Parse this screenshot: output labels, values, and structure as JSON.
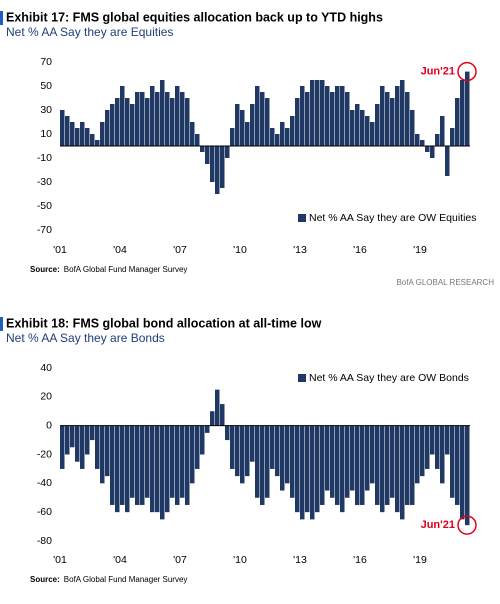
{
  "chart_data": [
    {
      "type": "bar",
      "title": "Exhibit 17: FMS global equities  allocation back up to YTD highs",
      "subtitle": "Net % AA Say they are Equities",
      "source_label": "Source:",
      "source": "BofA Global Fund Manager Survey",
      "brand": "BofA GLOBAL RESEARCH",
      "annotation": "Jun'21",
      "legend": "lower right",
      "categories": [
        "'01",
        null,
        null,
        null,
        null,
        null,
        null,
        null,
        null,
        null,
        null,
        null,
        "'04",
        null,
        null,
        null,
        null,
        null,
        null,
        null,
        null,
        null,
        null,
        null,
        "'07",
        null,
        null,
        null,
        null,
        null,
        null,
        null,
        null,
        null,
        null,
        null,
        "'10",
        null,
        null,
        null,
        null,
        null,
        null,
        null,
        null,
        null,
        null,
        null,
        "'13",
        null,
        null,
        null,
        null,
        null,
        null,
        null,
        null,
        null,
        null,
        null,
        "'16",
        null,
        null,
        null,
        null,
        null,
        null,
        null,
        null,
        null,
        null,
        null,
        "'19",
        null,
        null,
        null,
        null,
        null,
        null,
        null,
        null,
        null
      ],
      "series": [
        {
          "name": "Net % AA Say they are OW Equities",
          "color": "#1f3864",
          "values": [
            30,
            25,
            20,
            15,
            20,
            15,
            10,
            5,
            20,
            30,
            35,
            40,
            50,
            40,
            35,
            45,
            45,
            40,
            50,
            45,
            55,
            45,
            40,
            50,
            45,
            40,
            20,
            10,
            -5,
            -15,
            -30,
            -40,
            -35,
            -10,
            15,
            35,
            30,
            20,
            35,
            50,
            45,
            40,
            15,
            10,
            20,
            15,
            25,
            40,
            50,
            45,
            55,
            55,
            55,
            50,
            45,
            50,
            50,
            45,
            30,
            35,
            30,
            25,
            20,
            35,
            50,
            45,
            40,
            50,
            55,
            45,
            30,
            10,
            5,
            -5,
            -10,
            10,
            25,
            -25,
            15,
            40,
            55,
            62
          ]
        }
      ],
      "ylim": [
        -70,
        70
      ],
      "yticks": [
        -70,
        -50,
        -30,
        -10,
        10,
        30,
        50,
        70
      ]
    },
    {
      "type": "bar",
      "title": "Exhibit 18: FMS global bond allocation at all-time low",
      "subtitle": "Net % AA Say they are Bonds",
      "source_label": "Source:",
      "source": "BofA Global Fund Manager Survey",
      "annotation": "Jun'21",
      "legend": "upper right",
      "categories": [
        "'01",
        null,
        null,
        null,
        null,
        null,
        null,
        null,
        null,
        null,
        null,
        null,
        "'04",
        null,
        null,
        null,
        null,
        null,
        null,
        null,
        null,
        null,
        null,
        null,
        "'07",
        null,
        null,
        null,
        null,
        null,
        null,
        null,
        null,
        null,
        null,
        null,
        "'10",
        null,
        null,
        null,
        null,
        null,
        null,
        null,
        null,
        null,
        null,
        null,
        "'13",
        null,
        null,
        null,
        null,
        null,
        null,
        null,
        null,
        null,
        null,
        null,
        "'16",
        null,
        null,
        null,
        null,
        null,
        null,
        null,
        null,
        null,
        null,
        null,
        "'19",
        null,
        null,
        null,
        null,
        null,
        null,
        null,
        null,
        null
      ],
      "series": [
        {
          "name": "Net % AA Say they are OW Bonds",
          "color": "#1f3864",
          "values": [
            -30,
            -20,
            -15,
            -25,
            -30,
            -20,
            -10,
            -30,
            -40,
            -35,
            -55,
            -60,
            -55,
            -60,
            -50,
            -55,
            -55,
            -50,
            -60,
            -60,
            -65,
            -60,
            -50,
            -55,
            -50,
            -55,
            -40,
            -30,
            -20,
            -5,
            10,
            25,
            15,
            -10,
            -30,
            -35,
            -40,
            -35,
            -25,
            -50,
            -55,
            -50,
            -30,
            -35,
            -45,
            -40,
            -50,
            -60,
            -65,
            -60,
            -65,
            -60,
            -55,
            -45,
            -50,
            -55,
            -60,
            -50,
            -45,
            -55,
            -55,
            -45,
            -40,
            -55,
            -60,
            -55,
            -50,
            -60,
            -65,
            -55,
            -55,
            -40,
            -35,
            -30,
            -20,
            -30,
            -40,
            -20,
            -50,
            -55,
            -65,
            -69
          ]
        }
      ],
      "ylim": [
        -80,
        40
      ],
      "yticks": [
        -80,
        -60,
        -40,
        -20,
        0,
        20,
        40
      ]
    }
  ]
}
